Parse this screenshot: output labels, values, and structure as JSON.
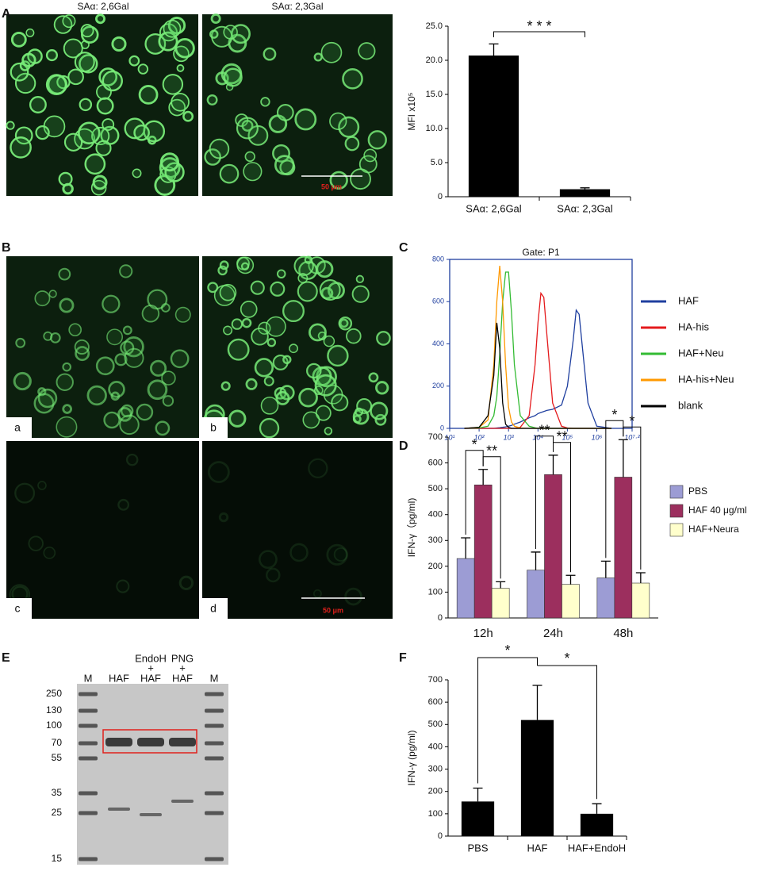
{
  "panel_labels": [
    "A",
    "B",
    "C",
    "D",
    "E",
    "F"
  ],
  "micrograph_A": {
    "titles": [
      "SAα: 2,6Gal",
      "SAα: 2,3Gal"
    ],
    "scale_bar": "50 μm"
  },
  "micrograph_B": {
    "labels": [
      "a",
      "b",
      "c",
      "d"
    ],
    "scale_bar": "50 μm"
  },
  "gel_E": {
    "treatments": [
      "EndoH",
      "+",
      "PNG",
      "+"
    ],
    "lanes": [
      "M",
      "HAF",
      "HAF",
      "HAF",
      "M"
    ],
    "markers": [
      250,
      130,
      100,
      70,
      55,
      35,
      25,
      15
    ]
  },
  "chart_data": [
    {
      "type": "bar",
      "ylabel": "MFI x10⁵",
      "categories": [
        "SAα: 2,6Gal",
        "SAα: 2,3Gal"
      ],
      "values": [
        20.7,
        1.1
      ],
      "errors": [
        1.7,
        0.2
      ],
      "color": "#000000",
      "ylim": [
        0,
        25
      ],
      "yticks": [
        0,
        {
          "value": 5,
          "label": "5.0"
        },
        {
          "value": 10,
          "label": "10.0"
        },
        {
          "value": 15,
          "label": "15.0"
        },
        {
          "value": 20,
          "label": "20.0"
        },
        {
          "value": 25,
          "label": "25.0"
        }
      ],
      "annotations": [
        "* * *"
      ]
    },
    {
      "type": "line",
      "title": "Gate: P1",
      "xscale": "log",
      "x": [
        31.6,
        100,
        200,
        316,
        398,
        501,
        631,
        794,
        1000,
        1259,
        1585,
        2512,
        5012,
        7943,
        10000,
        12589,
        15849,
        19953,
        31623,
        63096,
        100000,
        158489,
        199526,
        251189,
        316228,
        501187,
        1000000,
        3162278
      ],
      "series": [
        {
          "name": "HAF",
          "color": "#1f3f9f",
          "values": [
            0,
            0,
            0,
            0,
            2,
            3,
            5,
            7,
            10,
            14,
            20,
            30,
            50,
            60,
            70,
            75,
            80,
            85,
            90,
            110,
            200,
            420,
            560,
            540,
            400,
            120,
            10,
            0
          ]
        },
        {
          "name": "HA-his",
          "color": "#e41a1c",
          "values": [
            0,
            0,
            0,
            0,
            0,
            0,
            0,
            0,
            0,
            0,
            0,
            5,
            60,
            300,
            500,
            640,
            620,
            450,
            120,
            10,
            2,
            0,
            0,
            0,
            0,
            0,
            0,
            0
          ]
        },
        {
          "name": "HAF+Neu",
          "color": "#33bb33",
          "values": [
            0,
            2,
            10,
            60,
            150,
            350,
            600,
            740,
            740,
            550,
            300,
            60,
            10,
            3,
            0,
            0,
            0,
            0,
            0,
            0,
            0,
            0,
            0,
            0,
            0,
            0,
            0,
            0
          ]
        },
        {
          "name": "HA-his+Neu",
          "color": "#ff9900",
          "values": [
            0,
            5,
            40,
            300,
            600,
            770,
            600,
            300,
            100,
            30,
            10,
            2,
            0,
            0,
            0,
            0,
            0,
            0,
            0,
            0,
            0,
            0,
            0,
            0,
            0,
            0,
            0,
            0
          ]
        },
        {
          "name": "blank",
          "color": "#000000",
          "values": [
            0,
            5,
            60,
            250,
            500,
            380,
            120,
            20,
            5,
            0,
            0,
            0,
            0,
            0,
            0,
            0,
            0,
            0,
            0,
            0,
            0,
            0,
            0,
            0,
            0,
            0,
            0,
            0
          ]
        }
      ],
      "xlim": [
        10,
        15848932
      ],
      "xticks": [
        {
          "value": 10,
          "label": "10¹"
        },
        {
          "value": 100,
          "label": "10²"
        },
        {
          "value": 1000,
          "label": "10³"
        },
        {
          "value": 10000,
          "label": "10⁴"
        },
        {
          "value": 100000,
          "label": "10⁵"
        },
        {
          "value": 1000000,
          "label": "10⁶"
        },
        {
          "value": 15848932,
          "label": "10⁷·²"
        }
      ],
      "ylim": [
        0,
        800
      ],
      "yticks": [
        0,
        200,
        400,
        600,
        800
      ],
      "legend": "right"
    },
    {
      "type": "bar",
      "ylabel": "IFN-γ（pg/ml)",
      "categories": [
        "12h",
        "24h",
        "48h"
      ],
      "series": [
        {
          "name": "PBS",
          "color": "#9c9cd4",
          "values": [
            230,
            185,
            155
          ],
          "errors": [
            80,
            70,
            65
          ]
        },
        {
          "name": "HAF 40 μg/ml",
          "color": "#9c2f5e",
          "values": [
            515,
            555,
            545
          ],
          "errors": [
            60,
            75,
            145
          ]
        },
        {
          "name": "HAF+Neura",
          "color": "#ffffcc",
          "values": [
            115,
            130,
            135
          ],
          "errors": [
            25,
            35,
            40
          ]
        }
      ],
      "ylim": [
        0,
        700
      ],
      "yticks": [
        0,
        100,
        200,
        300,
        400,
        500,
        600,
        700
      ],
      "legend": "right",
      "annotations": [
        "*",
        "**",
        "**",
        "**",
        "*",
        "*"
      ]
    },
    {
      "type": "bar",
      "ylabel": "IFN-γ  (pg/ml)",
      "categories": [
        "PBS",
        "HAF",
        "HAF+EndoH"
      ],
      "values": [
        155,
        520,
        100
      ],
      "errors": [
        60,
        155,
        45
      ],
      "color": "#000000",
      "ylim": [
        0,
        700
      ],
      "yticks": [
        0,
        100,
        200,
        300,
        400,
        500,
        600,
        700
      ],
      "annotations": [
        "*",
        "*"
      ]
    }
  ]
}
